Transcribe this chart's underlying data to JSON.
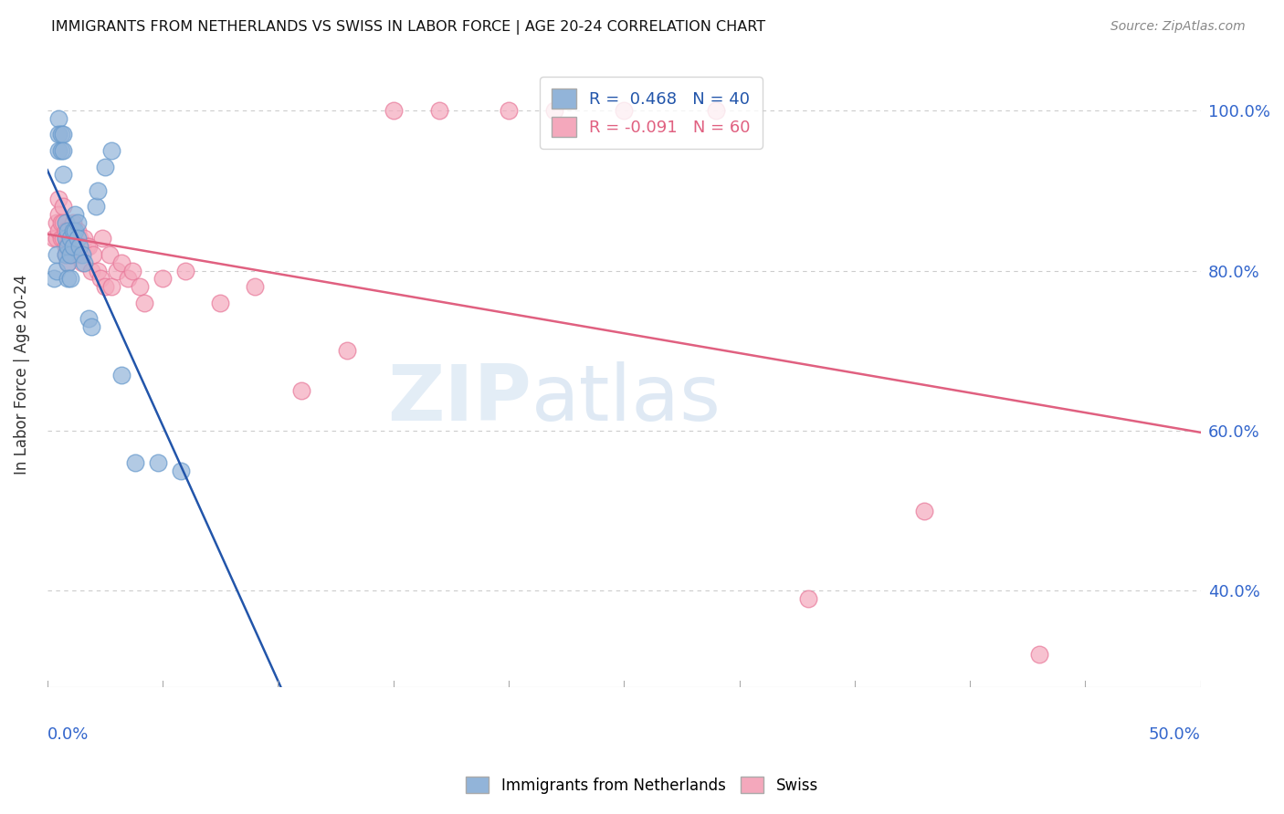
{
  "title": "IMMIGRANTS FROM NETHERLANDS VS SWISS IN LABOR FORCE | AGE 20-24 CORRELATION CHART",
  "source": "Source: ZipAtlas.com",
  "ylabel": "In Labor Force | Age 20-24",
  "ytick_values": [
    0.4,
    0.6,
    0.8,
    1.0
  ],
  "xmin": 0.0,
  "xmax": 0.5,
  "ymin": 0.28,
  "ymax": 1.06,
  "R_blue": 0.468,
  "N_blue": 40,
  "R_pink": -0.091,
  "N_pink": 60,
  "blue_color": "#92B4D9",
  "blue_edge_color": "#6699CC",
  "pink_color": "#F4A8BC",
  "pink_edge_color": "#E8799A",
  "blue_line_color": "#2255AA",
  "pink_line_color": "#E06080",
  "legend_label_blue": "Immigrants from Netherlands",
  "legend_label_pink": "Swiss",
  "blue_scatter_x": [
    0.003,
    0.004,
    0.004,
    0.005,
    0.005,
    0.005,
    0.006,
    0.006,
    0.007,
    0.007,
    0.007,
    0.008,
    0.008,
    0.008,
    0.009,
    0.009,
    0.009,
    0.009,
    0.01,
    0.01,
    0.01,
    0.011,
    0.011,
    0.012,
    0.012,
    0.013,
    0.013,
    0.014,
    0.015,
    0.016,
    0.018,
    0.019,
    0.021,
    0.022,
    0.025,
    0.028,
    0.032,
    0.038,
    0.048,
    0.058
  ],
  "blue_scatter_y": [
    0.79,
    0.82,
    0.8,
    0.99,
    0.97,
    0.95,
    0.97,
    0.95,
    0.97,
    0.95,
    0.92,
    0.86,
    0.84,
    0.82,
    0.85,
    0.83,
    0.81,
    0.79,
    0.84,
    0.82,
    0.79,
    0.85,
    0.83,
    0.87,
    0.85,
    0.86,
    0.84,
    0.83,
    0.82,
    0.81,
    0.74,
    0.73,
    0.88,
    0.9,
    0.93,
    0.95,
    0.67,
    0.56,
    0.56,
    0.55
  ],
  "pink_scatter_x": [
    0.003,
    0.004,
    0.004,
    0.005,
    0.005,
    0.005,
    0.006,
    0.006,
    0.007,
    0.007,
    0.007,
    0.008,
    0.008,
    0.008,
    0.009,
    0.009,
    0.01,
    0.01,
    0.011,
    0.011,
    0.012,
    0.012,
    0.013,
    0.013,
    0.014,
    0.014,
    0.015,
    0.015,
    0.016,
    0.017,
    0.018,
    0.019,
    0.02,
    0.022,
    0.023,
    0.024,
    0.025,
    0.027,
    0.028,
    0.03,
    0.032,
    0.035,
    0.037,
    0.04,
    0.042,
    0.05,
    0.06,
    0.075,
    0.09,
    0.11,
    0.13,
    0.15,
    0.17,
    0.2,
    0.22,
    0.25,
    0.29,
    0.33,
    0.38,
    0.43
  ],
  "pink_scatter_y": [
    0.84,
    0.86,
    0.84,
    0.89,
    0.87,
    0.85,
    0.86,
    0.84,
    0.88,
    0.86,
    0.84,
    0.85,
    0.83,
    0.82,
    0.83,
    0.81,
    0.84,
    0.82,
    0.86,
    0.84,
    0.84,
    0.82,
    0.85,
    0.83,
    0.84,
    0.82,
    0.83,
    0.81,
    0.84,
    0.83,
    0.83,
    0.8,
    0.82,
    0.8,
    0.79,
    0.84,
    0.78,
    0.82,
    0.78,
    0.8,
    0.81,
    0.79,
    0.8,
    0.78,
    0.76,
    0.79,
    0.8,
    0.76,
    0.78,
    0.65,
    0.7,
    1.0,
    1.0,
    1.0,
    1.0,
    1.0,
    1.0,
    0.39,
    0.5,
    0.32
  ]
}
